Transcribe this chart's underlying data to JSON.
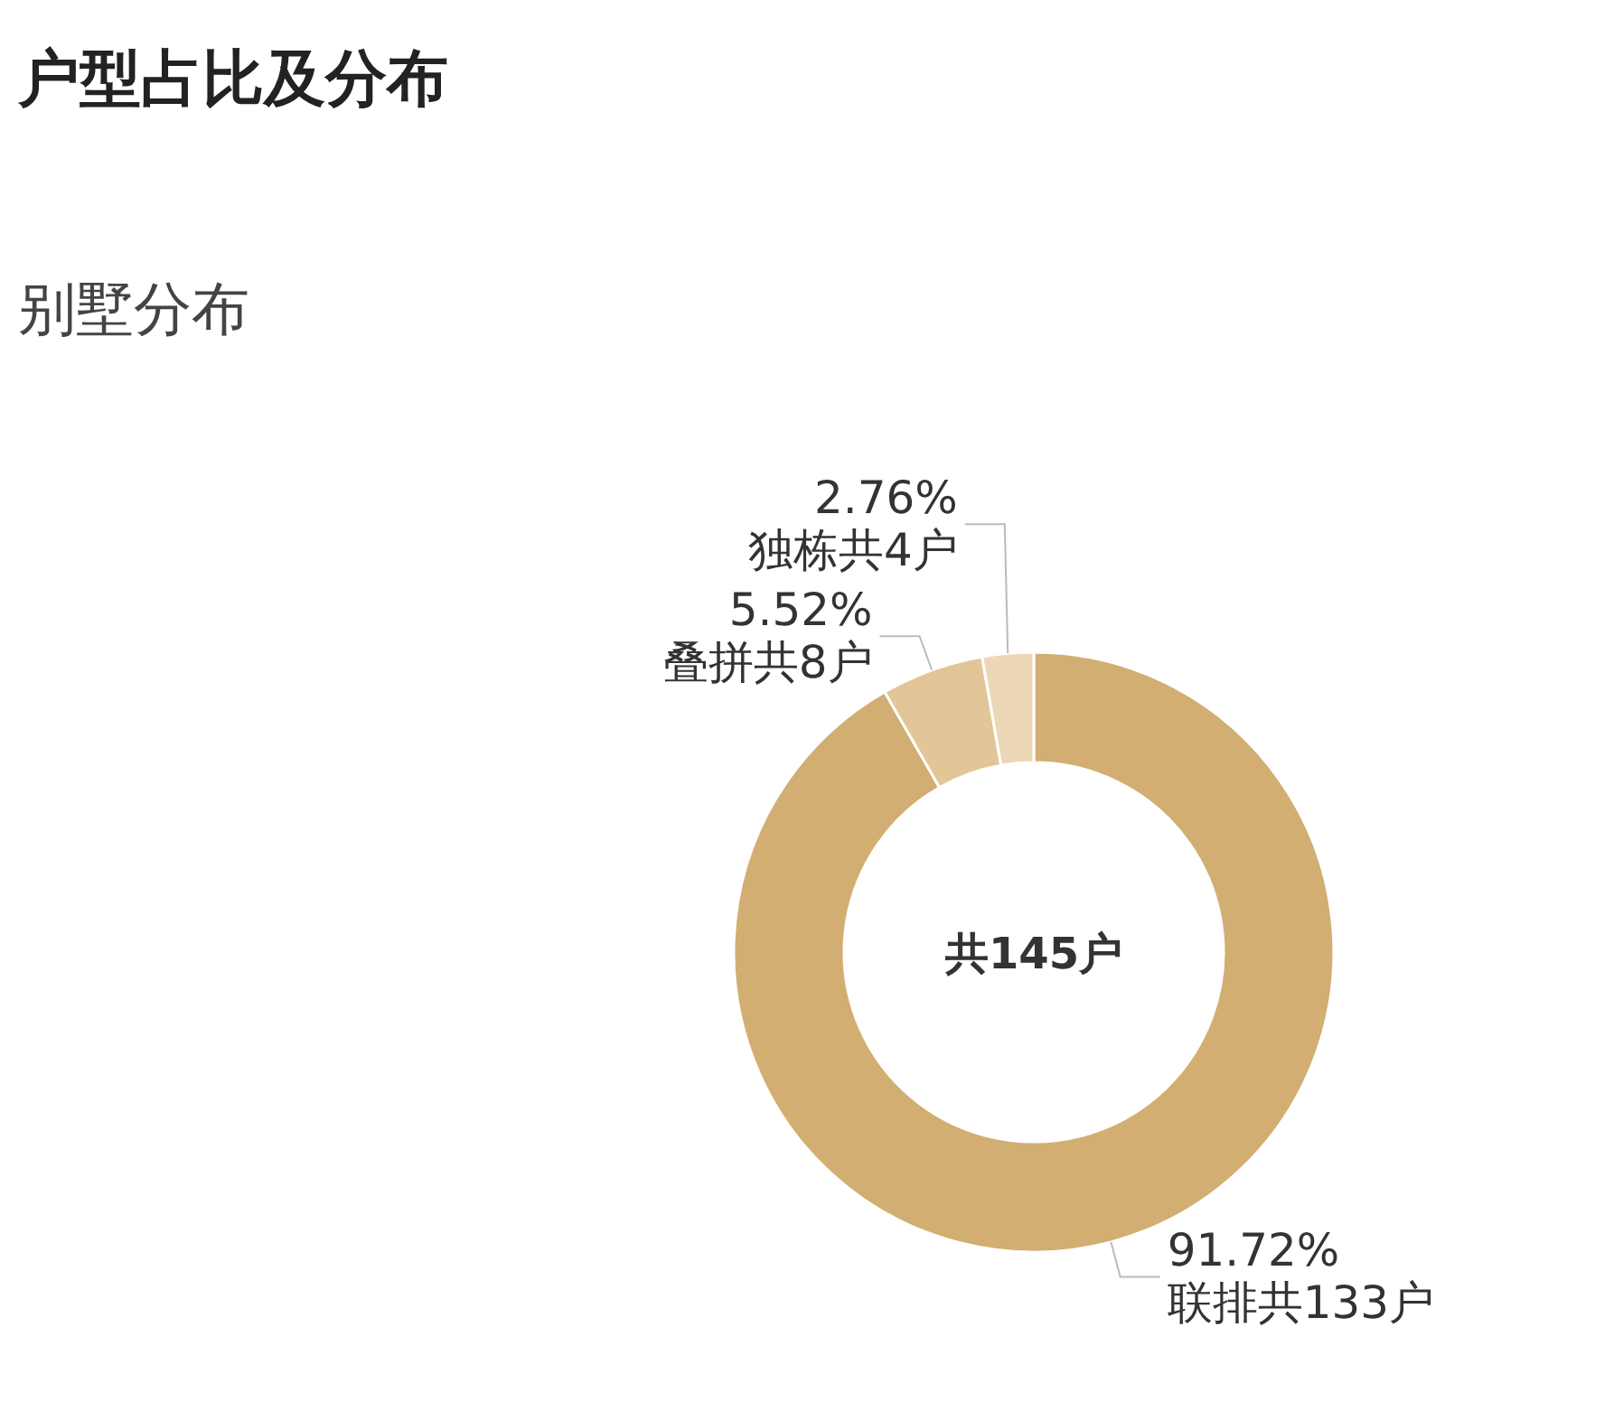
{
  "chart_data": {
    "type": "donut",
    "title": "户型占比及分布",
    "subtitle": "别墅分布",
    "categories": [
      "联排共133户",
      "叠拼共8户",
      "独栋共4户"
    ],
    "values": [
      91.72,
      5.52,
      2.76
    ],
    "value_labels": [
      "91.72%",
      "5.52%",
      "2.76%"
    ],
    "colors": [
      "#d2ae72",
      "#e2c698",
      "#ecd8b6"
    ],
    "annotations": [
      "共145户"
    ]
  }
}
